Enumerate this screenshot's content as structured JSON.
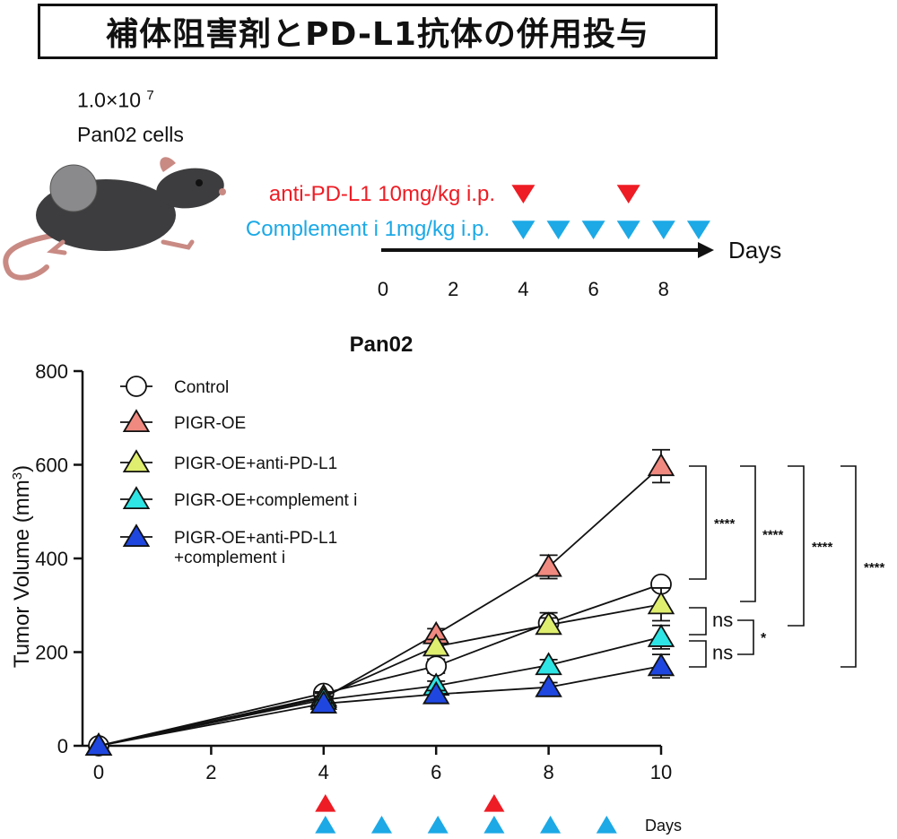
{
  "title": "補体阻害剤とPD-L1抗体の併用投与",
  "cells": {
    "count_mantissa": "1.0×10",
    "count_exponent": "7",
    "line2": "Pan02 cells"
  },
  "schedule": {
    "anti_pdl1_label": "anti-PD-L1 10mg/kg i.p.",
    "complement_label": "Complement i 1mg/kg  i.p.",
    "axis_label": "Days",
    "ticks": [
      "0",
      "2",
      "4",
      "6",
      "8"
    ],
    "anti_pdl1_days": [
      4,
      7
    ],
    "complement_days": [
      4,
      5,
      6,
      7,
      8,
      9
    ],
    "colors": {
      "anti_pdl1": "#ee1c24",
      "complement": "#1ca9e6"
    }
  },
  "chart_data": {
    "type": "line",
    "title": "Pan02",
    "xlabel": "",
    "ylabel": "Tumor Volume  (mm3)",
    "xlim": [
      0,
      10
    ],
    "ylim": [
      0,
      800
    ],
    "xticks": [
      0,
      2,
      4,
      6,
      8,
      10
    ],
    "yticks": [
      0,
      200,
      400,
      600,
      800
    ],
    "x": [
      0,
      4,
      6,
      8,
      10
    ],
    "legend_position": "top-left",
    "grid": false,
    "series": [
      {
        "name": "Control",
        "marker": "circle",
        "color": "#ffffff",
        "values": [
          0,
          112,
          170,
          262,
          345
        ],
        "errors": [
          0,
          10,
          15,
          22,
          10
        ]
      },
      {
        "name": "PIGR-OE",
        "marker": "triangle",
        "color": "#f08a80",
        "values": [
          0,
          102,
          238,
          382,
          597
        ],
        "errors": [
          0,
          10,
          12,
          25,
          35
        ]
      },
      {
        "name": "PIGR-OE+anti-PD-L1",
        "marker": "triangle",
        "color": "#dfee6e",
        "values": [
          0,
          105,
          212,
          258,
          302
        ],
        "errors": [
          0,
          10,
          15,
          15,
          35
        ]
      },
      {
        "name": "PIGR-OE+complement i",
        "marker": "triangle",
        "color": "#2ee4e4",
        "values": [
          0,
          98,
          128,
          172,
          232
        ],
        "errors": [
          0,
          8,
          10,
          12,
          25
        ]
      },
      {
        "name": "PIGR-OE+anti-PD-L1\n+complement i",
        "marker": "triangle",
        "color": "#1f47e0",
        "values": [
          0,
          90,
          110,
          125,
          170
        ],
        "errors": [
          0,
          8,
          8,
          10,
          25
        ]
      }
    ],
    "significance": [
      "****",
      "****",
      "****",
      "****",
      "ns",
      "ns",
      "*"
    ],
    "dosing_axis": {
      "label": "Days",
      "anti_pdl1_days": [
        4,
        7
      ],
      "complement_days": [
        4,
        5,
        6,
        7,
        8,
        9
      ]
    }
  }
}
